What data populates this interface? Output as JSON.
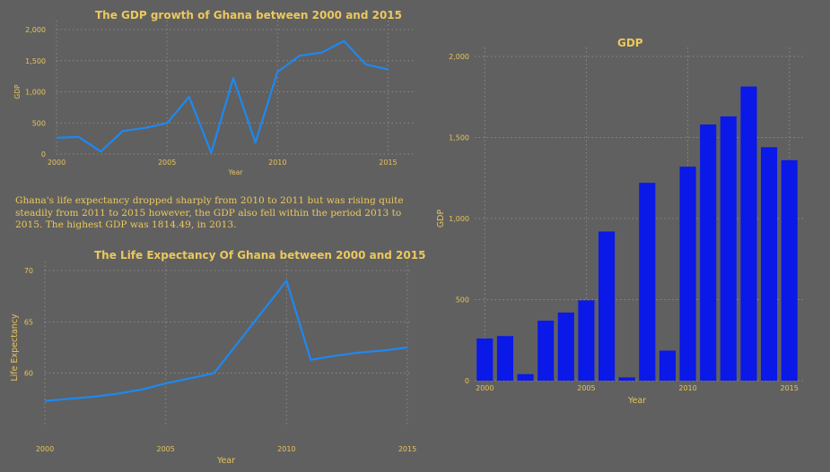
{
  "note": "Ghana's life expectancy dropped sharply from 2010 to 2011 but was rising  quite steadily from 2011 to 2015 however, the GDP also fell within the period 2013 to 2015. The highest GDP was 1814.49, in 2013.",
  "colors": {
    "background": "#606060",
    "text": "#ecc85c",
    "line": "#1e88f0",
    "bar": "#0a18e8"
  },
  "chart_data": [
    {
      "type": "line",
      "title": "The GDP growth of Ghana between 2000 and 2015",
      "xlabel": "Year",
      "ylabel": "GDP",
      "x": [
        2000,
        2001,
        2002,
        2003,
        2004,
        2005,
        2006,
        2007,
        2008,
        2009,
        2010,
        2011,
        2012,
        2013,
        2014,
        2015
      ],
      "values": [
        260,
        275,
        40,
        370,
        420,
        495,
        920,
        20,
        1220,
        185,
        1320,
        1580,
        1630,
        1814.49,
        1440,
        1360
      ],
      "ylim": [
        0,
        2000
      ],
      "xlim": [
        2000,
        2016.2
      ],
      "xticks": [
        2000,
        2005,
        2010,
        2015
      ],
      "yticks": [
        0,
        500,
        1000,
        1500,
        2000
      ],
      "ytick_labels": [
        "0",
        "500",
        "1,000",
        "1,500",
        "2,000"
      ],
      "grid": true
    },
    {
      "type": "line",
      "title": "The Life Expectancy Of Ghana between 2000 and 2015",
      "xlabel": "Year",
      "ylabel": "Life Expectancy",
      "x": [
        2000,
        2001,
        2002,
        2003,
        2004,
        2005,
        2006,
        2007,
        2008,
        2009,
        2010,
        2011,
        2012,
        2013,
        2014,
        2015
      ],
      "values": [
        57.3,
        57.5,
        57.7,
        58.0,
        58.4,
        59.0,
        59.5,
        60.0,
        63.0,
        66.0,
        69.0,
        61.3,
        61.7,
        62.0,
        62.2,
        62.5
      ],
      "ylim": [
        55,
        70
      ],
      "xlim": [
        2000,
        2015
      ],
      "xticks": [
        2000,
        2005,
        2010,
        2015
      ],
      "yticks": [
        60,
        65,
        70
      ],
      "ytick_labels": [
        "60",
        "65",
        "70"
      ],
      "grid": true
    },
    {
      "type": "bar",
      "title": "GDP",
      "xlabel": "Year",
      "ylabel": "GDP",
      "x": [
        2000,
        2001,
        2002,
        2003,
        2004,
        2005,
        2006,
        2007,
        2008,
        2009,
        2010,
        2011,
        2012,
        2013,
        2014,
        2015
      ],
      "values": [
        260,
        275,
        40,
        370,
        420,
        495,
        920,
        20,
        1220,
        185,
        1320,
        1580,
        1630,
        1814.49,
        1440,
        1360
      ],
      "ylim": [
        0,
        2000
      ],
      "xticks": [
        2000,
        2005,
        2010,
        2015
      ],
      "yticks": [
        0,
        500,
        1000,
        1500,
        2000
      ],
      "ytick_labels": [
        "0",
        "500",
        "1,000",
        "1,500",
        "2,000"
      ],
      "grid": true
    }
  ]
}
